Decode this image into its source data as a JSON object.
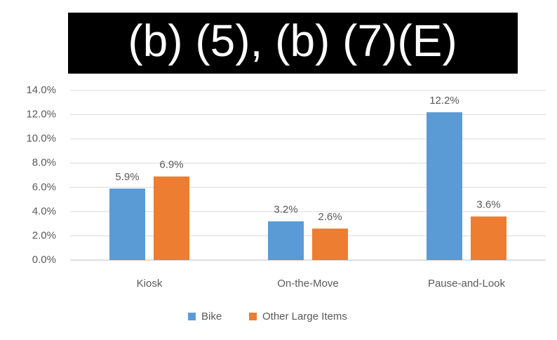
{
  "chart_data": {
    "type": "bar",
    "title": "(b) (5), (b) (7)(E)",
    "categories": [
      "Kiosk",
      "On-the-Move",
      "Pause-and-Look"
    ],
    "series": [
      {
        "name": "Bike",
        "color": "#5b9bd5",
        "values": [
          5.9,
          3.2,
          12.2
        ],
        "value_labels": [
          "5.9%",
          "3.2%",
          "12.2%"
        ]
      },
      {
        "name": "Other Large Items",
        "color": "#ed7d31",
        "values": [
          6.9,
          2.6,
          3.6
        ],
        "value_labels": [
          "6.9%",
          "2.6%",
          "3.6%"
        ]
      }
    ],
    "ylim": [
      0,
      14
    ],
    "yticks": [
      {
        "value": 0,
        "label": "0.0%"
      },
      {
        "value": 2,
        "label": "2.0%"
      },
      {
        "value": 4,
        "label": "4.0%"
      },
      {
        "value": 6,
        "label": "6.0%"
      },
      {
        "value": 8,
        "label": "8.0%"
      },
      {
        "value": 10,
        "label": "10.0%"
      },
      {
        "value": 12,
        "label": "12.0%"
      },
      {
        "value": 14,
        "label": "14.0%"
      }
    ],
    "grid": true,
    "legend": "bottom"
  }
}
